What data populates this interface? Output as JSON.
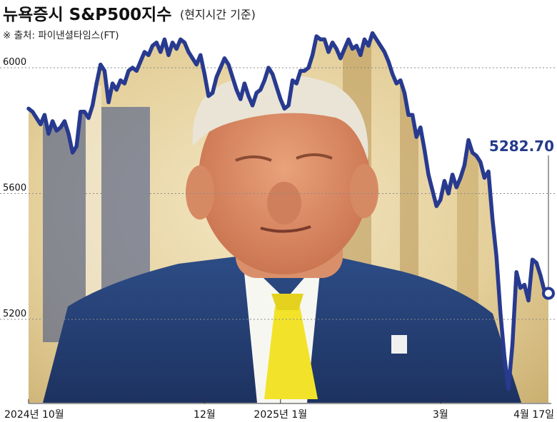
{
  "header": {
    "title": "뉴욕증시 S&P500지수",
    "subtitle": "(현지시간 기준)",
    "source": "※ 출처: 파이낸셜타임스(FT)"
  },
  "colors": {
    "line": "#283a8f",
    "grid": "#8a8a8a",
    "background": "#ffffff"
  },
  "chart_data": {
    "type": "line",
    "title": "뉴욕증시 S&P500지수",
    "xlabel": "",
    "ylabel": "",
    "ylim": [
      4960,
      6140
    ],
    "yticks": [
      6000,
      5600,
      5200
    ],
    "ytick_labels": [
      "6000",
      "5600",
      "5200"
    ],
    "xticks": [
      {
        "label": "2024년 10월",
        "index": 0
      },
      {
        "label": "12월",
        "index": 44
      },
      {
        "label": "2025년 1월",
        "index": 63
      },
      {
        "label": "3월",
        "index": 103
      },
      {
        "label": "4월 17일",
        "index": 136
      }
    ],
    "grid": "horizontal dotted",
    "last_value_label": "5282.70",
    "series": [
      {
        "values": [
          5870,
          5860,
          5840,
          5820,
          5850,
          5790,
          5830,
          5800,
          5810,
          5830,
          5790,
          5730,
          5750,
          5860,
          5860,
          5840,
          5880,
          5950,
          6010,
          5990,
          5890,
          5950,
          5930,
          5960,
          5950,
          5990,
          6000,
          5990,
          6020,
          6050,
          6040,
          6070,
          6080,
          6050,
          6090,
          6040,
          6080,
          6060,
          6090,
          6080,
          6050,
          6030,
          6010,
          6040,
          5980,
          5910,
          5920,
          5970,
          6000,
          6030,
          6010,
          5970,
          5930,
          5900,
          5950,
          5910,
          5880,
          5920,
          5930,
          5960,
          6000,
          5980,
          5940,
          5900,
          5870,
          5880,
          5960,
          5950,
          5990,
          5990,
          6000,
          6040,
          6100,
          6090,
          6090,
          6050,
          6080,
          6060,
          6030,
          6060,
          6090,
          6060,
          6070,
          6040,
          6090,
          6070,
          6110,
          6090,
          6070,
          6050,
          6020,
          5980,
          5950,
          5960,
          5920,
          5850,
          5850,
          5780,
          5810,
          5740,
          5660,
          5610,
          5560,
          5580,
          5640,
          5600,
          5660,
          5620,
          5650,
          5690,
          5770,
          5730,
          5720,
          5700,
          5650,
          5670,
          5520,
          5400,
          5220,
          5080,
          4980,
          5120,
          5350,
          5300,
          5310,
          5260,
          5390,
          5380,
          5340,
          5290,
          5282.7
        ]
      }
    ]
  }
}
